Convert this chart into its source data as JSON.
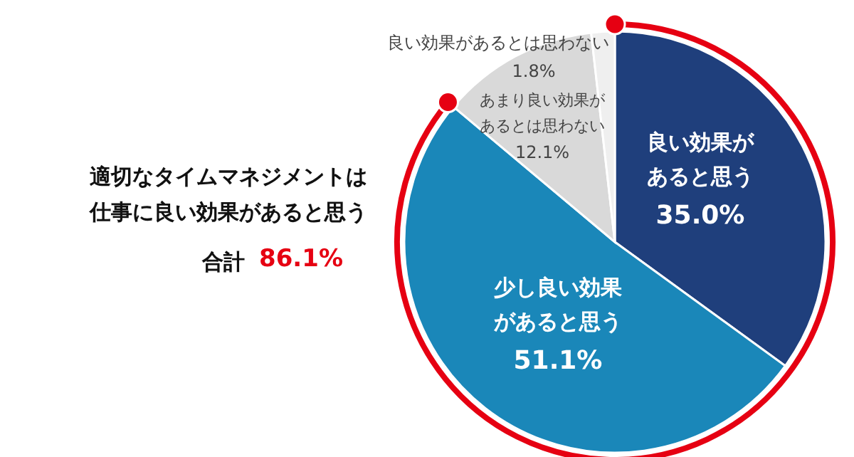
{
  "chart_data": {
    "type": "pie",
    "title": "適切なタイムマネジメントは仕事に良い効果があると思う",
    "categories": [
      "良い効果があると思う",
      "少し良い効果があると思う",
      "あまり良い効果があるとは思わない",
      "良い効果があるとは思わない"
    ],
    "values": [
      35.0,
      51.1,
      12.1,
      1.8
    ],
    "colors": [
      "#1f3f7c",
      "#1a87b9",
      "#d9d9d9",
      "#efefef"
    ],
    "value_labels": [
      "35.0%",
      "51.1%",
      "12.1%",
      "1.8%"
    ],
    "annotations": [
      "合計",
      "86.1%"
    ]
  }
}
